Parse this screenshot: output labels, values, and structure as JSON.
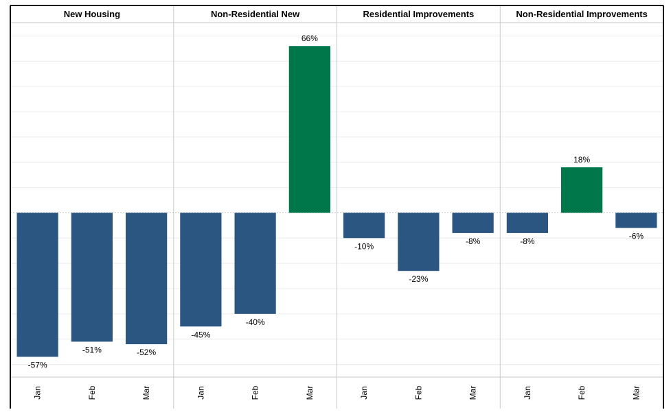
{
  "chart_data": {
    "type": "bar",
    "categories": [
      "Jan",
      "Feb",
      "Mar"
    ],
    "value_format": "percent",
    "ylim": [
      -65,
      75
    ],
    "grid": true,
    "colors": {
      "negative": "#2b5681",
      "positive": "#00774a",
      "gridline": "#ececec",
      "divider": "#c8c8c8",
      "zero_line": "#bdbdbd",
      "frame": "#000000"
    },
    "panels": [
      {
        "title": "New Housing",
        "values": [
          -57,
          -51,
          -52
        ]
      },
      {
        "title": "Non-Residential New",
        "values": [
          -45,
          -40,
          66
        ]
      },
      {
        "title": "Residential Improvements",
        "values": [
          -10,
          -23,
          -8
        ]
      },
      {
        "title": "Non-Residential Improvements",
        "values": [
          -8,
          18,
          -6
        ]
      }
    ]
  }
}
